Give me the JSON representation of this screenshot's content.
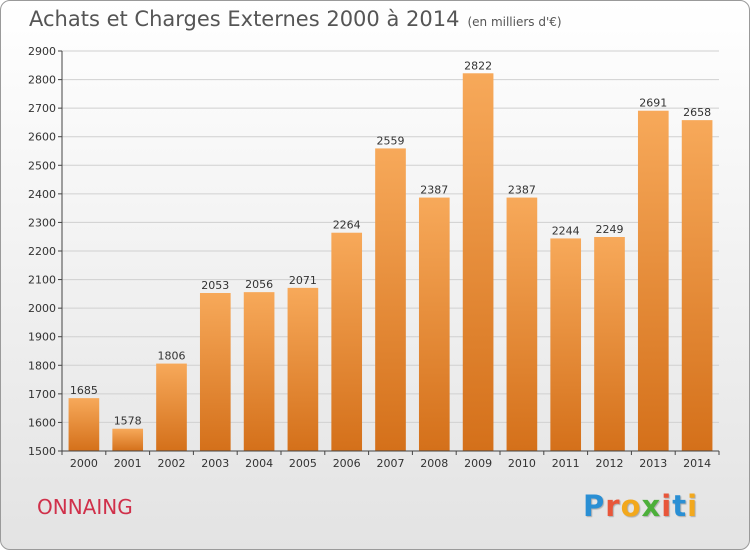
{
  "header": {
    "title": "Achats et Charges Externes 2000 à 2014",
    "subtitle": "(en milliers d'€)"
  },
  "footer": {
    "city": "ONNAING",
    "logo_letters": [
      {
        "ch": "P",
        "color": "#2a8fd4"
      },
      {
        "ch": "r",
        "color": "#e8563a"
      },
      {
        "ch": "o",
        "color": "#f2a81d"
      },
      {
        "ch": "x",
        "color": "#4caf3a"
      },
      {
        "ch": "i",
        "color": "#e8563a"
      },
      {
        "ch": "t",
        "color": "#2a8fd4"
      },
      {
        "ch": "i",
        "color": "#f2a81d"
      }
    ]
  },
  "colors": {
    "bar_top": "#f7a95a",
    "bar_bottom": "#d4701a",
    "grid": "#d0d0d0",
    "axis": "#444444"
  },
  "chart_data": {
    "type": "bar",
    "title": "Achats et Charges Externes 2000 à 2014",
    "subtitle": "(en milliers d'€)",
    "xlabel": "",
    "ylabel": "",
    "categories": [
      "2000",
      "2001",
      "2002",
      "2003",
      "2004",
      "2005",
      "2006",
      "2007",
      "2008",
      "2009",
      "2010",
      "2011",
      "2012",
      "2013",
      "2014"
    ],
    "values": [
      1685,
      1578,
      1806,
      2053,
      2056,
      2071,
      2264,
      2559,
      2387,
      2822,
      2387,
      2244,
      2249,
      2691,
      2658
    ],
    "ylim": [
      1500,
      2900
    ],
    "yticks": [
      1500,
      1600,
      1700,
      1800,
      1900,
      2000,
      2100,
      2200,
      2300,
      2400,
      2500,
      2600,
      2700,
      2800,
      2900
    ],
    "grid": true,
    "legend": "none"
  }
}
